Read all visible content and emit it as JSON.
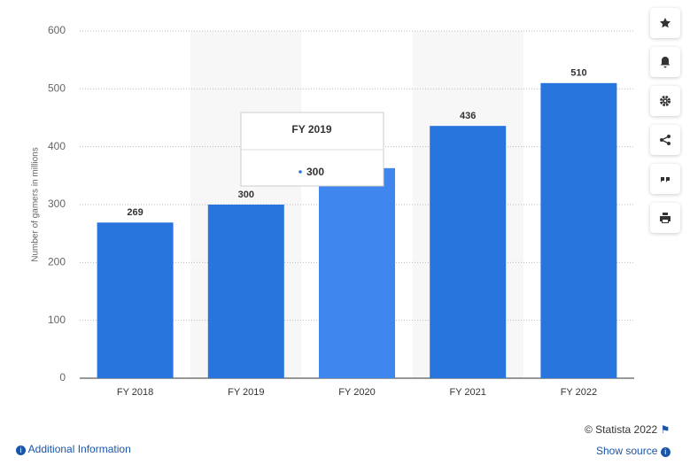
{
  "chart_data": {
    "type": "bar",
    "y_label": "Number of gamers in millions",
    "categories": [
      "FY 2018",
      "FY 2019",
      "FY 2020",
      "FY 2021",
      "FY 2022"
    ],
    "values": [
      269,
      300,
      363,
      436,
      510
    ],
    "color": "#2876dd",
    "highlight_color": "#3f87ef",
    "highlight_index": 2,
    "ylim": [
      0,
      600
    ],
    "yticks": [
      0,
      100,
      200,
      300,
      400,
      500,
      600
    ],
    "grid": true,
    "tooltip_index": 1
  },
  "footer": {
    "copyright": "© Statista 2022",
    "show_source": "Show source",
    "additional_info": "Additional Information"
  }
}
